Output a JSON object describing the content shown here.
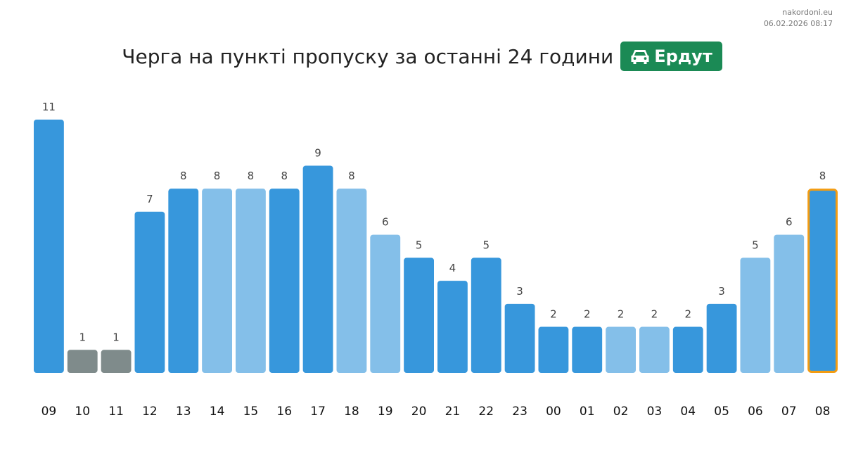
{
  "watermark": {
    "site": "nakordoni.eu",
    "timestamp": "06.02.2026 08:17"
  },
  "header": {
    "title": "Черга на пункті пропуску за останні 24 години",
    "badge_label": "Ердут",
    "badge_icon": "car-icon",
    "badge_color": "#1b8a55"
  },
  "colors": {
    "dark_bar": "#3797dc",
    "light_bar": "#84bfe9",
    "gray_bar": "#7f8b8b",
    "highlight_outline": "#f39c12",
    "value_label": "#444444",
    "axis_label": "#111111"
  },
  "chart_data": {
    "type": "bar",
    "title": "Черга на пункті пропуску за останні 24 години",
    "xlabel": "",
    "ylabel": "",
    "categories": [
      "09",
      "10",
      "11",
      "12",
      "13",
      "14",
      "15",
      "16",
      "17",
      "18",
      "19",
      "20",
      "21",
      "22",
      "23",
      "00",
      "01",
      "02",
      "03",
      "04",
      "05",
      "06",
      "07",
      "08"
    ],
    "values": [
      11,
      1,
      1,
      7,
      8,
      8,
      8,
      8,
      9,
      8,
      6,
      5,
      4,
      5,
      3,
      2,
      2,
      2,
      2,
      2,
      3,
      5,
      6,
      8
    ],
    "bar_styles": [
      "dark",
      "gray",
      "gray",
      "dark",
      "dark",
      "light",
      "light",
      "dark",
      "dark",
      "light",
      "light",
      "dark",
      "dark",
      "dark",
      "dark",
      "dark",
      "dark",
      "light",
      "light",
      "dark",
      "dark",
      "light",
      "light",
      "dark"
    ],
    "highlighted_index": 23,
    "ylim": [
      0,
      11
    ],
    "grid": false,
    "legend": "none"
  }
}
